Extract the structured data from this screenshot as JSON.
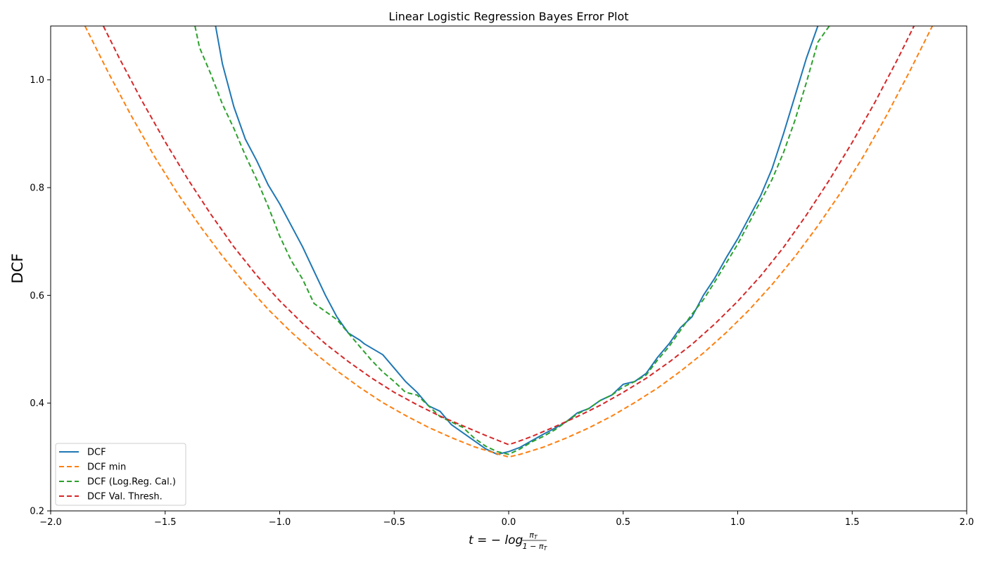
{
  "chart_data": {
    "type": "line",
    "title": "Linear Logistic Regression Bayes Error Plot",
    "xlabel_prefix": "t = − log",
    "xlabel_frac_num": "π",
    "xlabel_frac_num_sub": "T",
    "xlabel_frac_den": "1 − π",
    "xlabel_frac_den_sub": "T",
    "ylabel": "DCF",
    "xlim": [
      -2.0,
      2.0
    ],
    "ylim": [
      0.2,
      1.1
    ],
    "x_ticks": [
      -2.0,
      -1.5,
      -1.0,
      -0.5,
      0.0,
      0.5,
      1.0,
      1.5,
      2.0
    ],
    "x_tick_labels": [
      "−2.0",
      "−1.5",
      "−1.0",
      "−0.5",
      "0.0",
      "0.5",
      "1.0",
      "1.5",
      "2.0"
    ],
    "y_ticks": [
      0.2,
      0.4,
      0.6,
      0.8,
      1.0
    ],
    "y_tick_labels": [
      "0.2",
      "0.4",
      "0.6",
      "0.8",
      "1.0"
    ],
    "grid": false,
    "legend_position": "lower-left",
    "series": [
      {
        "name": "DCF",
        "color": "#1f77b4",
        "dash": "solid",
        "x": [
          -1.28,
          -1.25,
          -1.2,
          -1.15,
          -1.1,
          -1.05,
          -1.0,
          -0.95,
          -0.9,
          -0.85,
          -0.8,
          -0.75,
          -0.7,
          -0.65,
          -0.63,
          -0.55,
          -0.5,
          -0.45,
          -0.4,
          -0.35,
          -0.3,
          -0.25,
          -0.2,
          -0.15,
          -0.1,
          -0.05,
          0.0,
          0.05,
          0.1,
          0.15,
          0.2,
          0.25,
          0.3,
          0.35,
          0.4,
          0.45,
          0.5,
          0.55,
          0.6,
          0.65,
          0.7,
          0.75,
          0.8,
          0.85,
          0.9,
          0.95,
          1.0,
          1.05,
          1.1,
          1.15,
          1.2,
          1.25,
          1.3,
          1.35
        ],
        "y": [
          1.1,
          1.03,
          0.95,
          0.89,
          0.85,
          0.805,
          0.77,
          0.73,
          0.69,
          0.645,
          0.6,
          0.56,
          0.53,
          0.517,
          0.51,
          0.49,
          0.465,
          0.44,
          0.42,
          0.395,
          0.385,
          0.36,
          0.345,
          0.33,
          0.315,
          0.305,
          0.31,
          0.318,
          0.33,
          0.342,
          0.353,
          0.365,
          0.382,
          0.39,
          0.405,
          0.415,
          0.435,
          0.44,
          0.455,
          0.485,
          0.51,
          0.54,
          0.56,
          0.6,
          0.632,
          0.67,
          0.705,
          0.745,
          0.785,
          0.835,
          0.9,
          0.97,
          1.04,
          1.1
        ]
      },
      {
        "name": "DCF min",
        "color": "#ff7f0e",
        "dash": "dashed",
        "x": [
          -1.85,
          -1.75,
          -1.65,
          -1.55,
          -1.45,
          -1.35,
          -1.25,
          -1.15,
          -1.05,
          -0.95,
          -0.85,
          -0.75,
          -0.65,
          -0.55,
          -0.45,
          -0.35,
          -0.25,
          -0.15,
          -0.05,
          0.0,
          0.05,
          0.15,
          0.25,
          0.35,
          0.45,
          0.55,
          0.65,
          0.75,
          0.85,
          0.95,
          1.05,
          1.15,
          1.25,
          1.35,
          1.45,
          1.55,
          1.65,
          1.75,
          1.85
        ],
        "y": [
          1.1,
          1.015,
          0.935,
          0.86,
          0.792,
          0.73,
          0.673,
          0.621,
          0.574,
          0.532,
          0.494,
          0.46,
          0.429,
          0.401,
          0.377,
          0.355,
          0.336,
          0.319,
          0.306,
          0.3,
          0.305,
          0.318,
          0.335,
          0.354,
          0.376,
          0.401,
          0.428,
          0.459,
          0.493,
          0.531,
          0.573,
          0.62,
          0.672,
          0.729,
          0.791,
          0.859,
          0.934,
          1.015,
          1.1
        ]
      },
      {
        "name": "DCF (Log.Reg. Cal.)",
        "color": "#2ca02c",
        "dash": "dashed",
        "x": [
          -1.37,
          -1.35,
          -1.3,
          -1.25,
          -1.2,
          -1.15,
          -1.1,
          -1.05,
          -1.0,
          -0.95,
          -0.9,
          -0.85,
          -0.8,
          -0.75,
          -0.7,
          -0.65,
          -0.6,
          -0.55,
          -0.5,
          -0.45,
          -0.4,
          -0.35,
          -0.3,
          -0.25,
          -0.2,
          -0.15,
          -0.1,
          -0.05,
          0.0,
          0.05,
          0.1,
          0.15,
          0.2,
          0.25,
          0.3,
          0.35,
          0.4,
          0.45,
          0.5,
          0.55,
          0.6,
          0.65,
          0.7,
          0.75,
          0.8,
          0.85,
          0.9,
          0.95,
          1.0,
          1.05,
          1.1,
          1.15,
          1.2,
          1.25,
          1.3,
          1.35,
          1.4
        ],
        "y": [
          1.1,
          1.06,
          1.01,
          0.955,
          0.91,
          0.86,
          0.815,
          0.765,
          0.71,
          0.665,
          0.63,
          0.585,
          0.57,
          0.555,
          0.53,
          0.505,
          0.48,
          0.458,
          0.44,
          0.42,
          0.415,
          0.395,
          0.375,
          0.365,
          0.355,
          0.335,
          0.32,
          0.31,
          0.305,
          0.315,
          0.328,
          0.338,
          0.35,
          0.365,
          0.38,
          0.39,
          0.405,
          0.415,
          0.43,
          0.44,
          0.452,
          0.48,
          0.505,
          0.535,
          0.565,
          0.592,
          0.625,
          0.66,
          0.695,
          0.735,
          0.775,
          0.815,
          0.865,
          0.925,
          0.995,
          1.07,
          1.1
        ]
      },
      {
        "name": "DCF Val. Thresh.",
        "color": "#d62728",
        "dash": "dashed",
        "x": [
          -1.77,
          -1.7,
          -1.6,
          -1.5,
          -1.4,
          -1.3,
          -1.2,
          -1.1,
          -1.0,
          -0.9,
          -0.8,
          -0.7,
          -0.6,
          -0.5,
          -0.4,
          -0.3,
          -0.2,
          -0.1,
          -0.03,
          0.0,
          0.03,
          0.1,
          0.2,
          0.3,
          0.4,
          0.5,
          0.6,
          0.7,
          0.8,
          0.9,
          1.0,
          1.1,
          1.2,
          1.3,
          1.4,
          1.5,
          1.6,
          1.7,
          1.77
        ],
        "y": [
          1.1,
          1.04,
          0.96,
          0.885,
          0.815,
          0.75,
          0.69,
          0.637,
          0.59,
          0.548,
          0.51,
          0.477,
          0.447,
          0.42,
          0.397,
          0.376,
          0.358,
          0.34,
          0.328,
          0.323,
          0.327,
          0.338,
          0.356,
          0.375,
          0.396,
          0.42,
          0.446,
          0.476,
          0.509,
          0.547,
          0.589,
          0.636,
          0.689,
          0.749,
          0.814,
          0.884,
          0.959,
          1.04,
          1.1
        ]
      }
    ]
  }
}
